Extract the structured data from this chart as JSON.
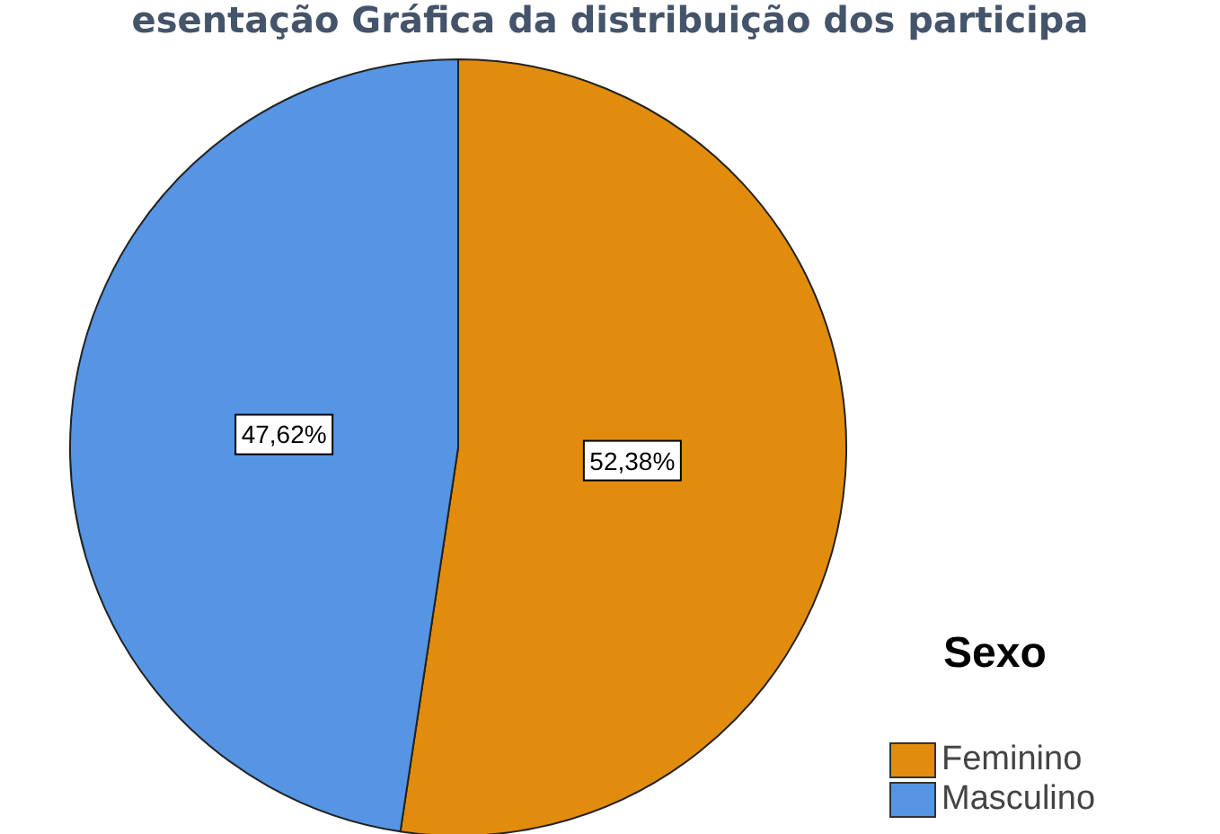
{
  "chart_data": {
    "type": "pie",
    "title": "esentação Gráfica da distribuição dos participa",
    "legend_title": "Sexo",
    "categories": [
      "Feminino",
      "Masculino"
    ],
    "values": [
      52.38,
      47.62
    ],
    "colors": [
      "#e18c0c",
      "#5595e3"
    ],
    "value_labels": [
      "52,38%",
      "47,62%"
    ],
    "legend": "bottom right"
  }
}
